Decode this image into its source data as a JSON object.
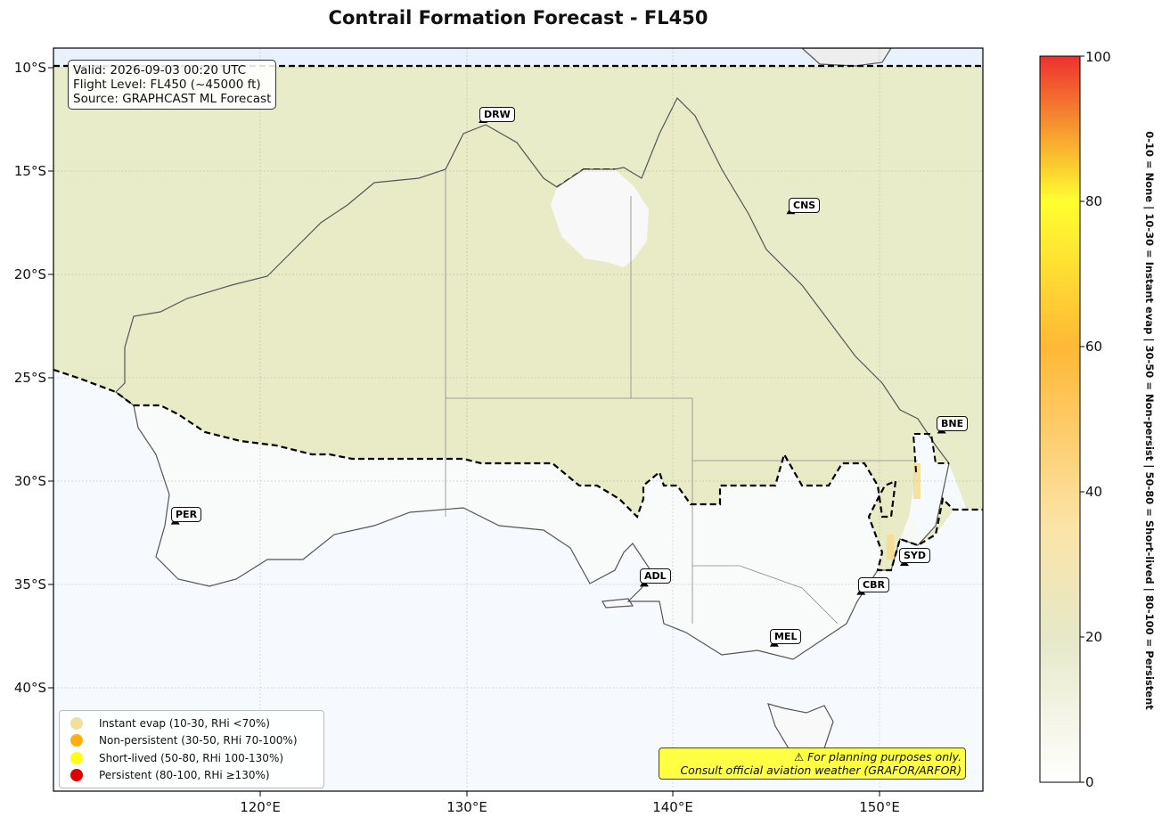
{
  "title": "Contrail Formation Forecast - FL450",
  "info_box": {
    "valid": "Valid: 2026-09-03 00:20 UTC",
    "flight_level": "Flight Level: FL450 (~45000 ft)",
    "source": "Source: GRAPHCAST ML Forecast"
  },
  "map": {
    "lon_range": [
      110,
      155
    ],
    "lat_range": [
      -45,
      -9.1
    ],
    "lon_ticks": [
      "120°E",
      "130°E",
      "140°E",
      "150°E"
    ],
    "lat_ticks": [
      "10°S",
      "15°S",
      "20°S",
      "25°S",
      "30°S",
      "35°S",
      "40°S"
    ],
    "grid": true,
    "colors": {
      "land": "#e9ecc9",
      "ocean_clear": "#f6faff",
      "clear_land": "#f9f9f9",
      "coast": "#555555",
      "boundary": "#000000"
    }
  },
  "cities": [
    {
      "code": "DRW",
      "lon": 130.8,
      "lat": -12.5
    },
    {
      "code": "CNS",
      "lon": 145.7,
      "lat": -16.9
    },
    {
      "code": "BNE",
      "lon": 153.0,
      "lat": -27.5
    },
    {
      "code": "PER",
      "lon": 115.9,
      "lat": -31.9
    },
    {
      "code": "ADL",
      "lon": 138.6,
      "lat": -34.9
    },
    {
      "code": "SYD",
      "lon": 151.2,
      "lat": -33.9
    },
    {
      "code": "CBR",
      "lon": 149.1,
      "lat": -35.3
    },
    {
      "code": "MEL",
      "lon": 144.9,
      "lat": -37.8
    }
  ],
  "legend": [
    {
      "label": "Instant evap (10-30, RHi <70%)",
      "color": "#f0e0a0"
    },
    {
      "label": "Non-persistent (30-50, RHi 70-100%)",
      "color": "#ffb010"
    },
    {
      "label": "Short-lived (50-80, RHi 100-130%)",
      "color": "#ffff10"
    },
    {
      "label": "Persistent (80-100, RHi ≥130%)",
      "color": "#e00000"
    }
  ],
  "warning": {
    "line1": "⚠ For planning purposes only.",
    "line2": "Consult official aviation weather (GRAFOR/ARFOR)"
  },
  "colorbar": {
    "min": 0,
    "max": 100,
    "ticks": [
      "0",
      "20",
      "40",
      "60",
      "80",
      "100"
    ],
    "side_label": "0-10 = None  |  10-30 = Instant evap  |  30-50 = Non-persist  |  50-80 = Short-lived  |  80-100 = Persistent"
  }
}
